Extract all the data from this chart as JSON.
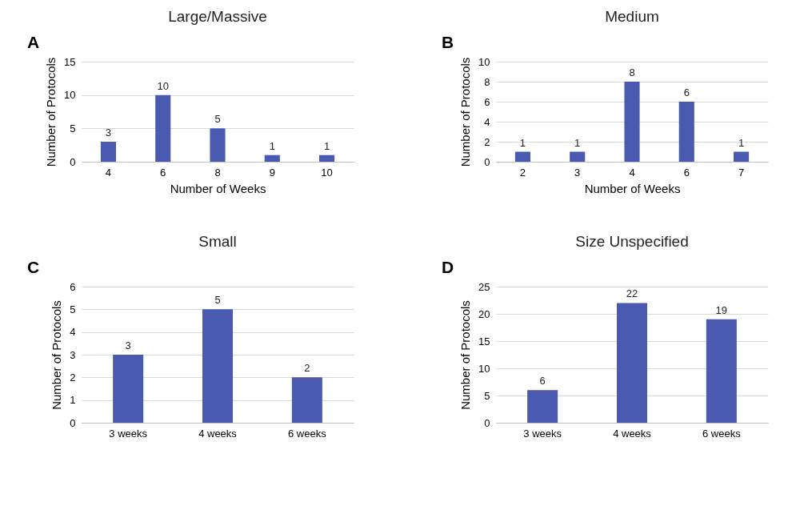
{
  "chart_data": [
    {
      "type": "bar",
      "title": "Large/Massive",
      "xlabel": "Number of Weeks",
      "ylabel": "Number of Protocols",
      "categories": [
        "4",
        "6",
        "8",
        "9",
        "10"
      ],
      "values": [
        3,
        10,
        5,
        1,
        1
      ],
      "color": "#4a5ab0",
      "ylim": [
        0,
        15
      ],
      "yticks": [
        0,
        5,
        10,
        15
      ],
      "grid": "y",
      "data_labels": true,
      "annotations": [
        "A"
      ]
    },
    {
      "type": "bar",
      "title": "Medium",
      "xlabel": "Number of Weeks",
      "ylabel": "Number of Protocols",
      "categories": [
        "2",
        "3",
        "4",
        "6",
        "7"
      ],
      "values": [
        1,
        1,
        8,
        6,
        1
      ],
      "color": "#4a5ab0",
      "ylim": [
        0,
        10
      ],
      "yticks": [
        0,
        2,
        4,
        6,
        8,
        10
      ],
      "grid": "y",
      "data_labels": true,
      "annotations": [
        "B"
      ]
    },
    {
      "type": "bar",
      "title": "Small",
      "ylabel": "Number of Protocols",
      "categories": [
        "3 weeks",
        "4 weeks",
        "6 weeks"
      ],
      "values": [
        3,
        5,
        2
      ],
      "color": "#4a5ab0",
      "ylim": [
        0,
        6
      ],
      "yticks": [
        0,
        1,
        2,
        3,
        4,
        5,
        6
      ],
      "grid": "y",
      "data_labels": true,
      "annotations": [
        "C"
      ]
    },
    {
      "type": "bar",
      "title": "Size Unspecified",
      "ylabel": "Number of Protocols",
      "categories": [
        "3 weeks",
        "4 weeks",
        "6 weeks"
      ],
      "values": [
        6,
        22,
        19
      ],
      "color": "#4a5ab0",
      "ylim": [
        0,
        25
      ],
      "yticks": [
        0,
        5,
        10,
        15,
        20,
        25
      ],
      "grid": "y",
      "data_labels": true,
      "annotations": [
        "D"
      ]
    }
  ]
}
